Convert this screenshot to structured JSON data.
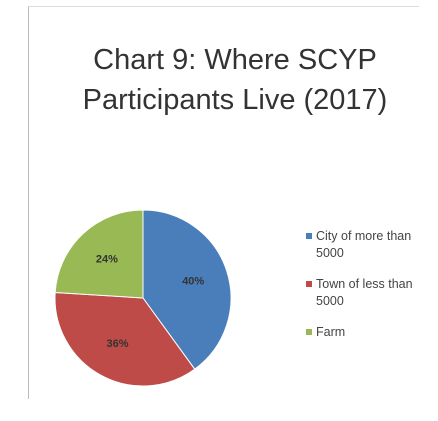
{
  "chart_data": {
    "type": "pie",
    "title": "Chart 9: Where SCYP Participants Live (2017)",
    "categories": [
      "City of more than 5000",
      "Town of less than 5000",
      "Farm"
    ],
    "values": [
      40,
      36,
      24
    ],
    "value_labels": [
      "40%",
      "36%",
      "24%"
    ],
    "colors": [
      "#4a7ebb",
      "#be4b48",
      "#98b954"
    ]
  }
}
